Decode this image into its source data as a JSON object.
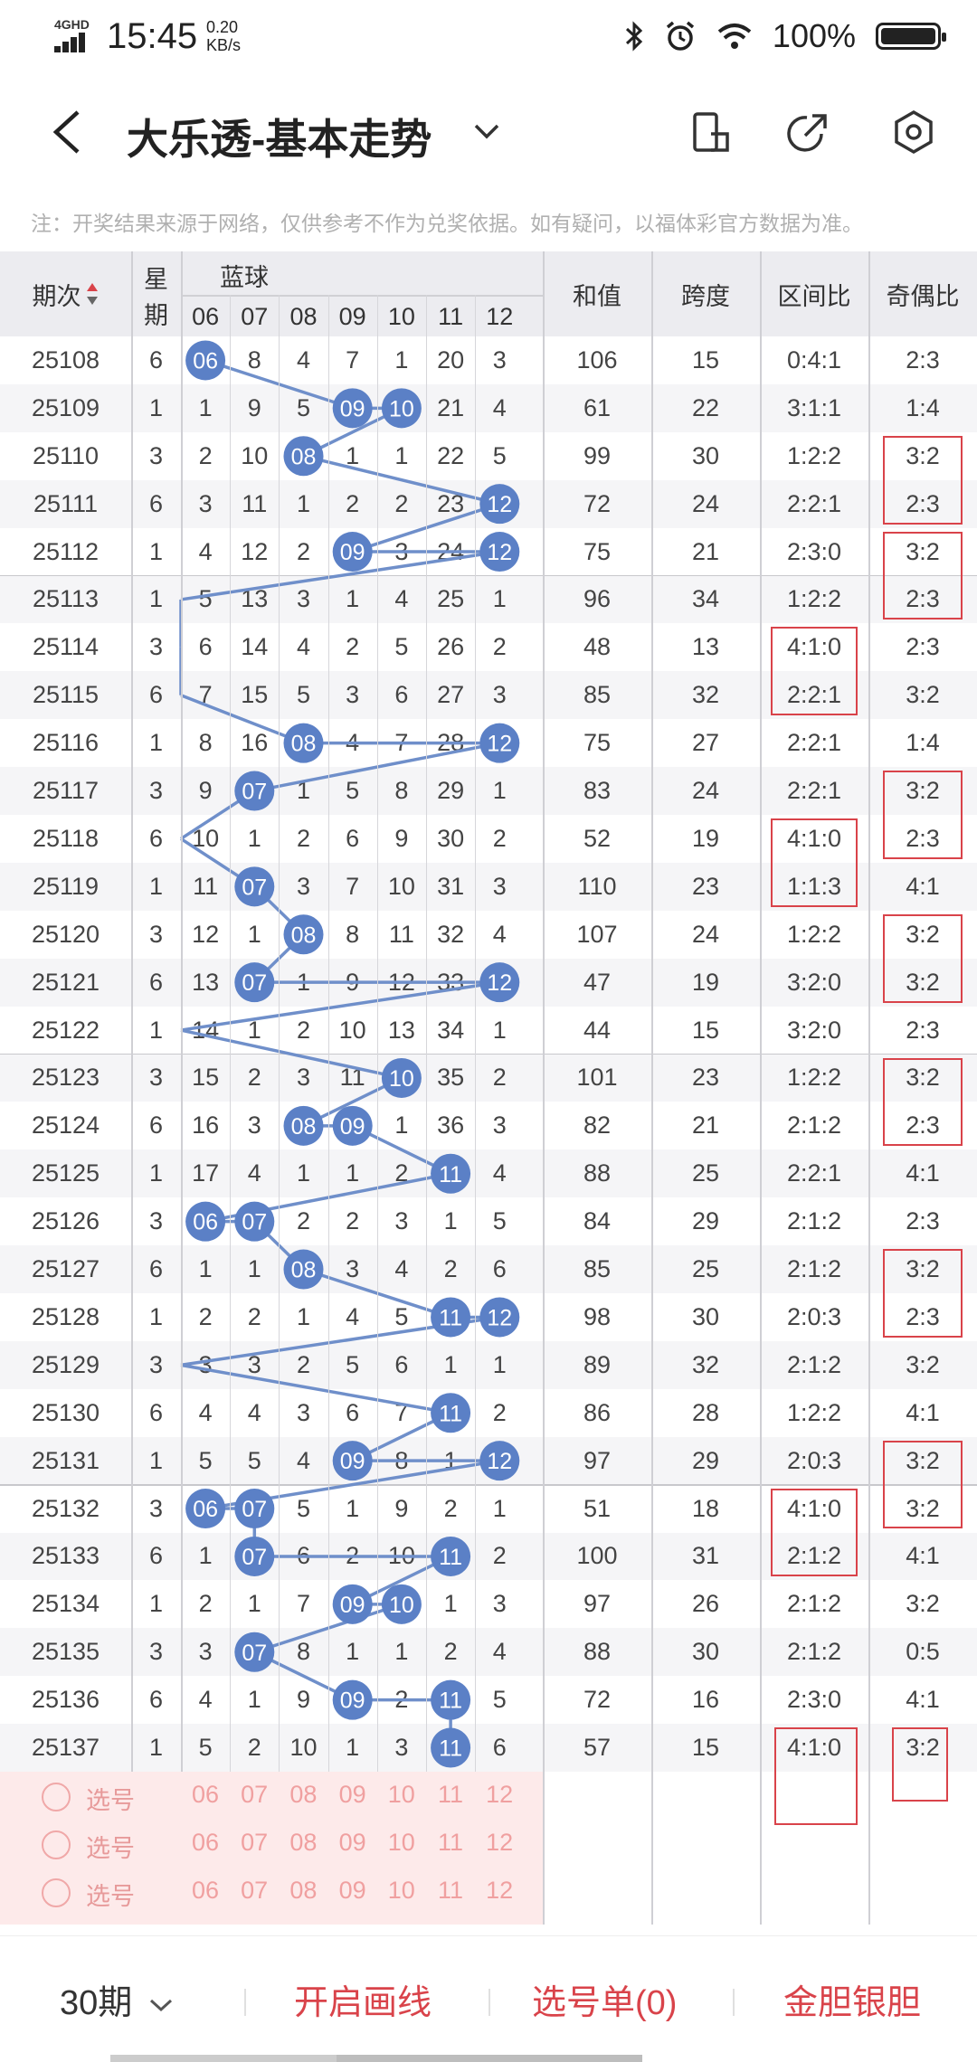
{
  "status": {
    "network": "4GHD",
    "time": "15:45",
    "speed_value": "0.20",
    "speed_unit": "KB/s",
    "battery": "100%"
  },
  "header": {
    "title": "大乐透-基本走势",
    "icons": [
      "back-arrow-icon",
      "chevron-down-icon",
      "phone-icon",
      "share-icon",
      "settings-icon"
    ]
  },
  "notice": "注：开奖结果来源于网络，仅供参考不作为兑奖依据。如有疑问，以福体彩官方数据为准。",
  "table": {
    "headers": {
      "period": "期次",
      "weekday_1": "星",
      "weekday_2": "期",
      "blue": "蓝球",
      "blue_cols": [
        "06",
        "07",
        "08",
        "09",
        "10",
        "11",
        "12"
      ],
      "sum": "和值",
      "span": "跨度",
      "zone": "区间比",
      "odd": "奇偶比"
    },
    "rows": [
      {
        "period": "25108",
        "day": "6",
        "hit": "06",
        "cells": [
          "06",
          "8",
          "4",
          "7",
          "1",
          "20",
          "3"
        ],
        "sum": "106",
        "span": "15",
        "zone": "0:4:1",
        "odd": "2:3"
      },
      {
        "period": "25109",
        "day": "1",
        "hit": "09,10",
        "cells": [
          "1",
          "9",
          "5",
          "09",
          "10",
          "21",
          "4"
        ],
        "sum": "61",
        "span": "22",
        "zone": "3:1:1",
        "odd": "1:4"
      },
      {
        "period": "25110",
        "day": "3",
        "hit": "08",
        "cells": [
          "2",
          "10",
          "08",
          "1",
          "1",
          "22",
          "5"
        ],
        "sum": "99",
        "span": "30",
        "zone": "1:2:2",
        "odd": "3:2"
      },
      {
        "period": "25111",
        "day": "6",
        "hit": "12",
        "cells": [
          "3",
          "11",
          "1",
          "2",
          "2",
          "23",
          "12"
        ],
        "sum": "72",
        "span": "24",
        "zone": "2:2:1",
        "odd": "2:3"
      },
      {
        "period": "25112",
        "day": "1",
        "hit": "09,12",
        "cells": [
          "4",
          "12",
          "2",
          "09",
          "3",
          "24",
          "12"
        ],
        "sum": "75",
        "span": "21",
        "zone": "2:3:0",
        "odd": "3:2"
      },
      {
        "period": "25113",
        "day": "1",
        "hit": "",
        "cells": [
          "5",
          "13",
          "3",
          "1",
          "4",
          "25",
          "1"
        ],
        "sum": "96",
        "span": "34",
        "zone": "1:2:2",
        "odd": "2:3"
      },
      {
        "period": "25114",
        "day": "3",
        "hit": "",
        "cells": [
          "6",
          "14",
          "4",
          "2",
          "5",
          "26",
          "2"
        ],
        "sum": "48",
        "span": "13",
        "zone": "4:1:0",
        "odd": "2:3"
      },
      {
        "period": "25115",
        "day": "6",
        "hit": "",
        "cells": [
          "7",
          "15",
          "5",
          "3",
          "6",
          "27",
          "3"
        ],
        "sum": "85",
        "span": "32",
        "zone": "2:2:1",
        "odd": "3:2"
      },
      {
        "period": "25116",
        "day": "1",
        "hit": "08,12",
        "cells": [
          "8",
          "16",
          "08",
          "4",
          "7",
          "28",
          "12"
        ],
        "sum": "75",
        "span": "27",
        "zone": "2:2:1",
        "odd": "1:4"
      },
      {
        "period": "25117",
        "day": "3",
        "hit": "07",
        "cells": [
          "9",
          "07",
          "1",
          "5",
          "8",
          "29",
          "1"
        ],
        "sum": "83",
        "span": "24",
        "zone": "2:2:1",
        "odd": "3:2"
      },
      {
        "period": "25118",
        "day": "6",
        "hit": "",
        "cells": [
          "10",
          "1",
          "2",
          "6",
          "9",
          "30",
          "2"
        ],
        "sum": "52",
        "span": "19",
        "zone": "4:1:0",
        "odd": "2:3"
      },
      {
        "period": "25119",
        "day": "1",
        "hit": "07",
        "cells": [
          "11",
          "07",
          "3",
          "7",
          "10",
          "31",
          "3"
        ],
        "sum": "110",
        "span": "23",
        "zone": "1:1:3",
        "odd": "4:1"
      },
      {
        "period": "25120",
        "day": "3",
        "hit": "08",
        "cells": [
          "12",
          "1",
          "08",
          "8",
          "11",
          "32",
          "4"
        ],
        "sum": "107",
        "span": "24",
        "zone": "1:2:2",
        "odd": "3:2"
      },
      {
        "period": "25121",
        "day": "6",
        "hit": "07,12",
        "cells": [
          "13",
          "07",
          "1",
          "9",
          "12",
          "33",
          "12"
        ],
        "sum": "47",
        "span": "19",
        "zone": "3:2:0",
        "odd": "3:2"
      },
      {
        "period": "25122",
        "day": "1",
        "hit": "",
        "cells": [
          "14",
          "1",
          "2",
          "10",
          "13",
          "34",
          "1"
        ],
        "sum": "44",
        "span": "15",
        "zone": "3:2:0",
        "odd": "2:3"
      },
      {
        "period": "25123",
        "day": "3",
        "hit": "10",
        "cells": [
          "15",
          "2",
          "3",
          "11",
          "10",
          "35",
          "2"
        ],
        "sum": "101",
        "span": "23",
        "zone": "1:2:2",
        "odd": "3:2"
      },
      {
        "period": "25124",
        "day": "6",
        "hit": "08,09",
        "cells": [
          "16",
          "3",
          "08",
          "09",
          "1",
          "36",
          "3"
        ],
        "sum": "82",
        "span": "21",
        "zone": "2:1:2",
        "odd": "2:3"
      },
      {
        "period": "25125",
        "day": "1",
        "hit": "11",
        "cells": [
          "17",
          "4",
          "1",
          "1",
          "2",
          "11",
          "4"
        ],
        "sum": "88",
        "span": "25",
        "zone": "2:2:1",
        "odd": "4:1"
      },
      {
        "period": "25126",
        "day": "3",
        "hit": "06,07",
        "cells": [
          "06",
          "07",
          "2",
          "2",
          "3",
          "1",
          "5"
        ],
        "sum": "84",
        "span": "29",
        "zone": "2:1:2",
        "odd": "2:3"
      },
      {
        "period": "25127",
        "day": "6",
        "hit": "08",
        "cells": [
          "1",
          "1",
          "08",
          "3",
          "4",
          "2",
          "6"
        ],
        "sum": "85",
        "span": "25",
        "zone": "2:1:2",
        "odd": "3:2"
      },
      {
        "period": "25128",
        "day": "1",
        "hit": "11,12",
        "cells": [
          "2",
          "2",
          "1",
          "4",
          "5",
          "11",
          "12"
        ],
        "sum": "98",
        "span": "30",
        "zone": "2:0:3",
        "odd": "2:3"
      },
      {
        "period": "25129",
        "day": "3",
        "hit": "",
        "cells": [
          "3",
          "3",
          "2",
          "5",
          "6",
          "1",
          "1"
        ],
        "sum": "89",
        "span": "32",
        "zone": "2:1:2",
        "odd": "3:2"
      },
      {
        "period": "25130",
        "day": "6",
        "hit": "11",
        "cells": [
          "4",
          "4",
          "3",
          "6",
          "7",
          "11",
          "2"
        ],
        "sum": "86",
        "span": "28",
        "zone": "1:2:2",
        "odd": "4:1"
      },
      {
        "period": "25131",
        "day": "1",
        "hit": "09,12",
        "cells": [
          "5",
          "5",
          "4",
          "09",
          "8",
          "1",
          "12"
        ],
        "sum": "97",
        "span": "29",
        "zone": "2:0:3",
        "odd": "3:2"
      },
      {
        "period": "25132",
        "day": "3",
        "hit": "06,07",
        "cells": [
          "06",
          "07",
          "5",
          "1",
          "9",
          "2",
          "1"
        ],
        "sum": "51",
        "span": "18",
        "zone": "4:1:0",
        "odd": "3:2"
      },
      {
        "period": "25133",
        "day": "6",
        "hit": "07,11",
        "cells": [
          "1",
          "07",
          "6",
          "2",
          "10",
          "11",
          "2"
        ],
        "sum": "100",
        "span": "31",
        "zone": "2:1:2",
        "odd": "4:1"
      },
      {
        "period": "25134",
        "day": "1",
        "hit": "09,10",
        "cells": [
          "2",
          "1",
          "7",
          "09",
          "10",
          "1",
          "3"
        ],
        "sum": "97",
        "span": "26",
        "zone": "2:1:2",
        "odd": "3:2"
      },
      {
        "period": "25135",
        "day": "3",
        "hit": "07",
        "cells": [
          "3",
          "07",
          "8",
          "1",
          "1",
          "2",
          "4"
        ],
        "sum": "88",
        "span": "30",
        "zone": "2:1:2",
        "odd": "0:5"
      },
      {
        "period": "25136",
        "day": "6",
        "hit": "09,11",
        "cells": [
          "4",
          "1",
          "9",
          "09",
          "2",
          "11",
          "5"
        ],
        "sum": "72",
        "span": "16",
        "zone": "2:3:0",
        "odd": "4:1"
      },
      {
        "period": "25137",
        "day": "1",
        "hit": "11",
        "cells": [
          "5",
          "2",
          "10",
          "1",
          "3",
          "11",
          "6"
        ],
        "sum": "57",
        "span": "15",
        "zone": "4:1:0",
        "odd": "3:2"
      }
    ],
    "pick_rows": [
      {
        "label": "选号",
        "nums": [
          "06",
          "07",
          "08",
          "09",
          "10",
          "11",
          "12"
        ]
      },
      {
        "label": "选号",
        "nums": [
          "06",
          "07",
          "08",
          "09",
          "10",
          "11",
          "12"
        ]
      },
      {
        "label": "选号",
        "nums": [
          "06",
          "07",
          "08",
          "09",
          "10",
          "11",
          "12"
        ]
      }
    ]
  },
  "colors": {
    "ball": "#5b80c6",
    "line": "#6f8fca",
    "highlight_box": "#d9434a",
    "pick_bg": "#fdeaea",
    "action": "#d9434a"
  },
  "bottom": {
    "periods": "30期",
    "draw_line": "开启画线",
    "selection": "选号单(0)",
    "gold_silver": "金胆银胆"
  }
}
